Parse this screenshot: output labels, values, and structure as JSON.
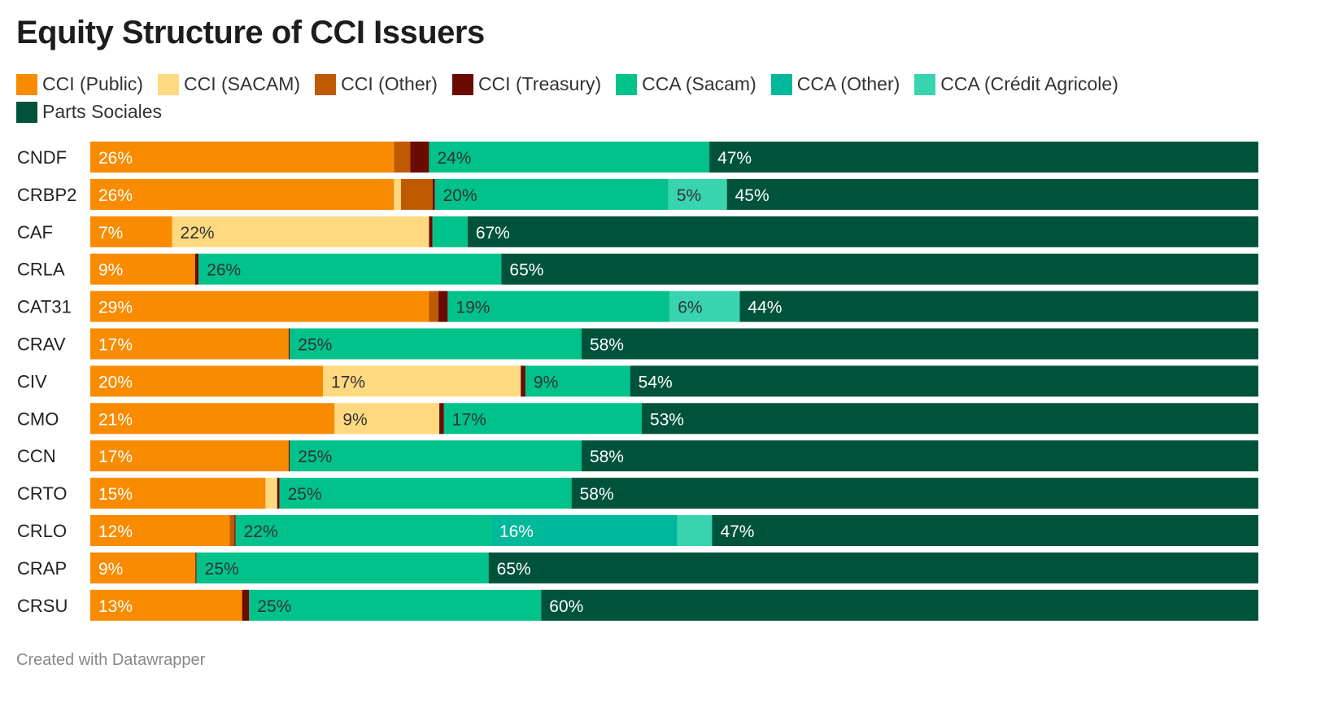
{
  "chart_data": {
    "type": "bar",
    "orientation": "horizontal",
    "stacked": true,
    "title": "Equity Structure of CCI Issuers",
    "footer": "Created with Datawrapper",
    "legend_placement": "top",
    "categories": [
      "CNDF",
      "CRBP2",
      "CAF",
      "CRLA",
      "CAT31",
      "CRAV",
      "CIV",
      "CMO",
      "CCN",
      "CRTO",
      "CRLO",
      "CRAP",
      "CRSU"
    ],
    "series": [
      {
        "name": "CCI (Public)",
        "color": "#f88b00",
        "label_color": "#ffffff",
        "values": [
          26,
          26,
          7,
          9,
          29,
          17,
          20,
          21,
          17,
          15,
          12,
          9,
          13
        ]
      },
      {
        "name": "CCI (SACAM)",
        "color": "#ffd980",
        "label_color": "#333333",
        "values": [
          0,
          0.6,
          22,
          0,
          0,
          0,
          17,
          9,
          0,
          1,
          0,
          0,
          0
        ]
      },
      {
        "name": "CCI (Other)",
        "color": "#c05a00",
        "label_color": "#ffffff",
        "values": [
          1.4,
          2.7,
          0,
          0,
          0.8,
          0,
          0,
          0,
          0,
          0,
          0.4,
          0,
          0
        ]
      },
      {
        "name": "CCI (Treasury)",
        "color": "#6b0a00",
        "label_color": "#ffffff",
        "values": [
          1.6,
          0.2,
          0.3,
          0.3,
          0.8,
          0.1,
          0.4,
          0.4,
          0.1,
          0.2,
          0.1,
          0.1,
          0.6
        ]
      },
      {
        "name": "CCA (Sacam)",
        "color": "#00c28a",
        "label_color": "#333333",
        "values": [
          24,
          20,
          3,
          26,
          19,
          25,
          9,
          17,
          25,
          25,
          22,
          25,
          25
        ]
      },
      {
        "name": "CCA (Other)",
        "color": "#00b89a",
        "label_color": "#ffffff",
        "values": [
          0,
          0,
          0,
          0,
          0,
          0,
          0,
          0,
          0,
          0,
          16,
          0,
          0
        ]
      },
      {
        "name": "CCA (Crédit Agricole)",
        "color": "#38d4b0",
        "label_color": "#333333",
        "values": [
          0,
          5,
          0,
          0,
          6,
          0,
          0,
          0,
          0,
          0,
          3,
          0,
          0
        ]
      },
      {
        "name": "Parts Sociales",
        "color": "#00533b",
        "label_color": "#ffffff",
        "values": [
          47,
          45,
          67,
          65,
          44,
          58,
          54,
          53,
          58,
          58,
          47,
          65,
          60
        ]
      }
    ],
    "label_min_value": 5,
    "xlim": [
      0,
      100
    ],
    "value_suffix": "%"
  }
}
